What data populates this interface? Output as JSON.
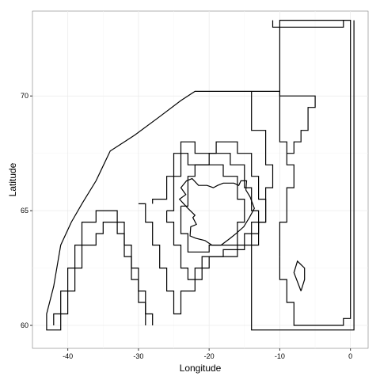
{
  "chart_data": {
    "type": "map",
    "title": "",
    "xlabel": "Longitude",
    "ylabel": "Latitude",
    "xlim": [
      -45,
      2.5
    ],
    "ylim": [
      59,
      73.7
    ],
    "x_ticks": [
      -40,
      -30,
      -20,
      -10,
      0
    ],
    "y_ticks": [
      60,
      65,
      70
    ],
    "grid": true,
    "polygons": [
      {
        "name": "region-outer-west",
        "points": [
          [
            -43,
            60
          ],
          [
            -43,
            60.5
          ],
          [
            -42,
            61.7
          ],
          [
            -41,
            63.5
          ],
          [
            -39.5,
            64.5
          ],
          [
            -38,
            65.3
          ],
          [
            -36,
            66.3
          ],
          [
            -34,
            67.6
          ],
          [
            -32,
            68
          ],
          [
            -30.5,
            68.3
          ],
          [
            -27,
            69.1
          ],
          [
            -24,
            69.8
          ],
          [
            -22,
            70.2
          ],
          [
            -10,
            70.2
          ],
          [
            -10,
            70
          ],
          [
            -5,
            70
          ],
          [
            -5,
            69.5
          ],
          [
            -6,
            69.5
          ],
          [
            -6,
            68.5
          ],
          [
            -7,
            68.5
          ],
          [
            -7,
            68
          ],
          [
            -8,
            68
          ],
          [
            -8,
            67.5
          ],
          [
            -9,
            67.5
          ]
        ]
      },
      {
        "name": "region-west-staircase-1",
        "points": [
          [
            -43,
            60
          ],
          [
            -43,
            59.8
          ],
          [
            -41,
            59.8
          ],
          [
            -41,
            60.5
          ],
          [
            -40,
            60.5
          ],
          [
            -40,
            61.5
          ],
          [
            -39,
            61.5
          ],
          [
            -39,
            62.5
          ],
          [
            -38,
            62.5
          ],
          [
            -38,
            63.5
          ],
          [
            -36,
            63.5
          ],
          [
            -36,
            64
          ],
          [
            -35,
            64
          ],
          [
            -35,
            64.5
          ],
          [
            -32,
            64.5
          ],
          [
            -32,
            63.5
          ],
          [
            -31,
            63.5
          ],
          [
            -31,
            62.5
          ],
          [
            -30,
            62.5
          ],
          [
            -30,
            61.5
          ],
          [
            -29,
            61.5
          ],
          [
            -29,
            60.5
          ],
          [
            -28,
            60.5
          ],
          [
            -28,
            60
          ]
        ]
      },
      {
        "name": "region-west-staircase-2",
        "points": [
          [
            -42,
            60
          ],
          [
            -42,
            60.5
          ],
          [
            -41,
            60.5
          ],
          [
            -41,
            61.5
          ],
          [
            -40,
            61.5
          ],
          [
            -40,
            62.5
          ],
          [
            -39,
            62.5
          ],
          [
            -39,
            63.5
          ],
          [
            -38,
            63.5
          ],
          [
            -38,
            64.5
          ],
          [
            -36,
            64.5
          ],
          [
            -36,
            65
          ],
          [
            -33,
            65
          ],
          [
            -33,
            64
          ],
          [
            -32,
            64
          ],
          [
            -32,
            63
          ],
          [
            -31,
            63
          ],
          [
            -31,
            62
          ],
          [
            -30,
            62
          ],
          [
            -30,
            61
          ],
          [
            -29,
            61
          ],
          [
            -29,
            60
          ]
        ]
      },
      {
        "name": "region-iceland-shelf-1",
        "points": [
          [
            -30,
            65.3
          ],
          [
            -29,
            65.3
          ],
          [
            -29,
            64.5
          ],
          [
            -28,
            64.5
          ],
          [
            -28,
            63.5
          ],
          [
            -27,
            63.5
          ],
          [
            -27,
            62.5
          ],
          [
            -26,
            62.5
          ],
          [
            -26,
            61.5
          ],
          [
            -25,
            61.5
          ],
          [
            -25,
            60.5
          ],
          [
            -24,
            60.5
          ],
          [
            -24,
            61.5
          ],
          [
            -22,
            61.5
          ],
          [
            -22,
            62.5
          ],
          [
            -20,
            62.5
          ],
          [
            -20,
            63
          ],
          [
            -16,
            63
          ],
          [
            -16,
            63.5
          ],
          [
            -14,
            63.5
          ],
          [
            -14,
            64.5
          ],
          [
            -12,
            64.5
          ],
          [
            -12,
            65.5
          ],
          [
            -13,
            65.5
          ],
          [
            -13,
            66.5
          ],
          [
            -14,
            66.5
          ],
          [
            -14,
            67.5
          ],
          [
            -16,
            67.5
          ],
          [
            -16,
            68
          ],
          [
            -19,
            68
          ],
          [
            -19,
            67.5
          ],
          [
            -22,
            67.5
          ],
          [
            -22,
            68
          ],
          [
            -24,
            68
          ],
          [
            -24,
            67.5
          ],
          [
            -25,
            67.5
          ],
          [
            -25,
            66.5
          ],
          [
            -26,
            66.5
          ],
          [
            -26,
            65.5
          ],
          [
            -28,
            65.5
          ],
          [
            -28,
            65.3
          ]
        ]
      },
      {
        "name": "region-iceland-shelf-2",
        "points": [
          [
            -26,
            65
          ],
          [
            -26,
            64.5
          ],
          [
            -25,
            64.5
          ],
          [
            -25,
            63.5
          ],
          [
            -24,
            63.5
          ],
          [
            -24,
            62.5
          ],
          [
            -23,
            62.5
          ],
          [
            -23,
            62
          ],
          [
            -21,
            62
          ],
          [
            -21,
            63
          ],
          [
            -18,
            63
          ],
          [
            -18,
            63.3
          ],
          [
            -15,
            63.3
          ],
          [
            -15,
            64
          ],
          [
            -13,
            64
          ],
          [
            -13,
            65
          ],
          [
            -14,
            65
          ],
          [
            -14,
            66
          ],
          [
            -15,
            66
          ],
          [
            -15,
            67
          ],
          [
            -17,
            67
          ],
          [
            -17,
            67.5
          ],
          [
            -20,
            67.5
          ],
          [
            -20,
            67
          ],
          [
            -23,
            67
          ],
          [
            -23,
            67.5
          ],
          [
            -24,
            67.5
          ],
          [
            -24,
            66.5
          ],
          [
            -25,
            66.5
          ],
          [
            -25,
            65
          ],
          [
            -26,
            65
          ]
        ]
      },
      {
        "name": "region-iceland-shelf-3",
        "points": [
          [
            -24,
            65.2
          ],
          [
            -24,
            64
          ],
          [
            -23,
            64
          ],
          [
            -23,
            63.2
          ],
          [
            -20,
            63.2
          ],
          [
            -20,
            63.5
          ],
          [
            -16,
            63.5
          ],
          [
            -16,
            64.5
          ],
          [
            -15,
            64.5
          ],
          [
            -15,
            65.5
          ],
          [
            -16,
            65.5
          ],
          [
            -16,
            66.5
          ],
          [
            -18,
            66.5
          ],
          [
            -18,
            67
          ],
          [
            -22,
            67
          ],
          [
            -22,
            66.5
          ],
          [
            -23,
            66.5
          ],
          [
            -23,
            65.2
          ],
          [
            -24,
            65.2
          ]
        ]
      },
      {
        "name": "region-east-corridor",
        "points": [
          [
            -14,
            60
          ],
          [
            -14,
            63.5
          ],
          [
            -13,
            63.5
          ],
          [
            -13,
            64.5
          ],
          [
            -12,
            64.5
          ],
          [
            -12,
            66
          ],
          [
            -11,
            66
          ],
          [
            -11,
            67
          ],
          [
            -12,
            67
          ],
          [
            -12,
            68.5
          ],
          [
            -14,
            68.5
          ],
          [
            -14,
            70.2
          ]
        ]
      },
      {
        "name": "region-faroe-block",
        "points": [
          [
            -10,
            63
          ],
          [
            -10,
            64.5
          ],
          [
            -9,
            64.5
          ],
          [
            -9,
            66
          ],
          [
            -8,
            66
          ],
          [
            -8,
            67
          ],
          [
            -9,
            67
          ],
          [
            -9,
            68
          ],
          [
            -10,
            68
          ],
          [
            -10,
            70
          ]
        ]
      },
      {
        "name": "region-east-frame",
        "points": [
          [
            -10,
            70
          ],
          [
            -10,
            73.3
          ],
          [
            0,
            73.3
          ],
          [
            0,
            60.3
          ],
          [
            -1,
            60.3
          ],
          [
            -1,
            60
          ],
          [
            -8,
            60
          ],
          [
            -8,
            61
          ],
          [
            -9,
            61
          ],
          [
            -9,
            62
          ],
          [
            -10,
            62
          ],
          [
            -10,
            63
          ]
        ]
      },
      {
        "name": "region-east-frame-inner",
        "points": [
          [
            -11,
            73.3
          ],
          [
            -11,
            73
          ],
          [
            -1,
            73
          ],
          [
            -1,
            73.3
          ]
        ]
      },
      {
        "name": "region-east-inner-right",
        "points": [
          [
            0.5,
            73.3
          ],
          [
            0.5,
            59.8
          ],
          [
            -14,
            59.8
          ],
          [
            -14,
            60
          ]
        ]
      },
      {
        "name": "region-jan-mayen-like",
        "points": [
          [
            -7,
            61.5
          ],
          [
            -8,
            62.3
          ],
          [
            -7.5,
            62.8
          ],
          [
            -6.5,
            62.5
          ],
          [
            -6.5,
            62
          ],
          [
            -7,
            61.5
          ]
        ]
      }
    ],
    "coastline": [
      [
        -22,
        64.8
      ],
      [
        -23,
        65.1
      ],
      [
        -24.2,
        65.5
      ],
      [
        -23.3,
        65.7
      ],
      [
        -24,
        66
      ],
      [
        -23.2,
        66.3
      ],
      [
        -22.4,
        66.4
      ],
      [
        -21.5,
        66.1
      ],
      [
        -20.8,
        66.1
      ],
      [
        -20.3,
        66.1
      ],
      [
        -19.4,
        66
      ],
      [
        -18.8,
        66.1
      ],
      [
        -18,
        66.2
      ],
      [
        -17.1,
        66.2
      ],
      [
        -16.5,
        66.2
      ],
      [
        -15.8,
        66.1
      ],
      [
        -15.5,
        66.3
      ],
      [
        -14.7,
        66.3
      ],
      [
        -14.8,
        65.9
      ],
      [
        -14.2,
        65.6
      ],
      [
        -13.6,
        65.1
      ],
      [
        -14.3,
        64.7
      ],
      [
        -15.1,
        64.3
      ],
      [
        -16.2,
        64
      ],
      [
        -17,
        63.8
      ],
      [
        -18.3,
        63.5
      ],
      [
        -19.6,
        63.5
      ],
      [
        -20.6,
        63.7
      ],
      [
        -21.9,
        63.8
      ],
      [
        -22.7,
        63.9
      ],
      [
        -22.6,
        64.3
      ],
      [
        -21.8,
        64.4
      ],
      [
        -22.3,
        64.7
      ],
      [
        -22,
        64.8
      ]
    ]
  }
}
